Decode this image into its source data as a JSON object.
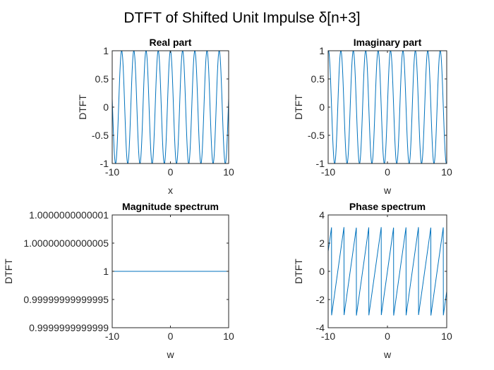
{
  "figure_title": "DTFT of Shifted Unit Impulse δ[n+3]",
  "line_color": "#0072BD",
  "chart_data": [
    {
      "type": "line",
      "title": "Real part",
      "xlabel": "x",
      "ylabel": "DTFT",
      "xlim": [
        -10,
        10
      ],
      "ylim": [
        -1,
        1
      ],
      "xticks": [
        -10,
        0,
        10
      ],
      "xtick_labels": [
        "-10",
        "0",
        "10"
      ],
      "yticks": [
        -1,
        -0.5,
        0,
        0.5,
        1
      ],
      "ytick_labels": [
        "-1",
        "-0.5",
        "0",
        "0.5",
        "1"
      ],
      "function": "cos(3w)",
      "grid": false
    },
    {
      "type": "line",
      "title": "Imaginary part",
      "xlabel": "w",
      "ylabel": "DTFT",
      "xlim": [
        -10,
        10
      ],
      "ylim": [
        -1,
        1
      ],
      "xticks": [
        -10,
        0,
        10
      ],
      "xtick_labels": [
        "-10",
        "0",
        "10"
      ],
      "yticks": [
        -1,
        -0.5,
        0,
        0.5,
        1
      ],
      "ytick_labels": [
        "-1",
        "-0.5",
        "0",
        "0.5",
        "1"
      ],
      "function": "sin(3w)",
      "grid": false
    },
    {
      "type": "line",
      "title": "Magnitude spectrum",
      "xlabel": "w",
      "ylabel": "DTFT",
      "xlim": [
        -10,
        10
      ],
      "ylim": [
        0.9999999999999,
        1.0000000000001
      ],
      "xticks": [
        -10,
        0,
        10
      ],
      "xtick_labels": [
        "-10",
        "0",
        "10"
      ],
      "yticks": [
        0.9999999999999,
        0.99999999999995,
        1,
        1.00000000000005,
        1.0000000000001
      ],
      "ytick_labels": [
        "0.9999999999999",
        "0.99999999999995",
        "1",
        "1.00000000000005",
        "1.0000000000001"
      ],
      "function": "1",
      "grid": false
    },
    {
      "type": "line",
      "title": "Phase spectrum",
      "xlabel": "w",
      "ylabel": "DTFT",
      "xlim": [
        -10,
        10
      ],
      "ylim": [
        -4,
        4
      ],
      "xticks": [
        -10,
        0,
        10
      ],
      "xtick_labels": [
        "-10",
        "0",
        "10"
      ],
      "yticks": [
        -4,
        -2,
        0,
        2,
        4
      ],
      "ytick_labels": [
        "-4",
        "-2",
        "0",
        "2",
        "4"
      ],
      "function": "angle(exp(j3w))",
      "grid": false
    }
  ]
}
